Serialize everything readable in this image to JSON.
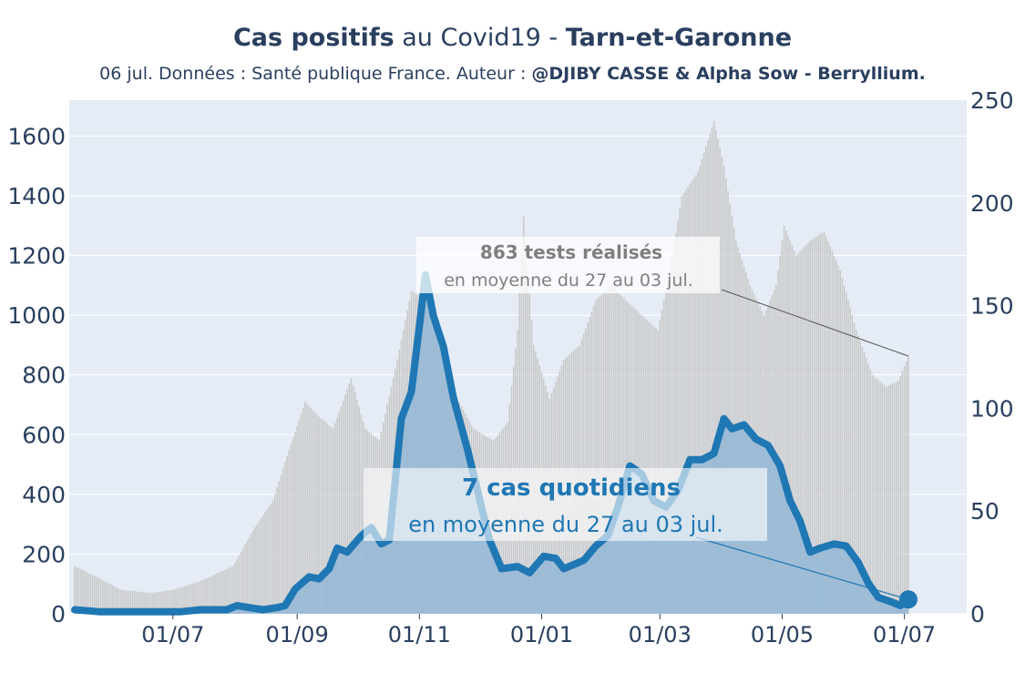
{
  "title": {
    "part1_bold": "Cas positifs",
    "part2": " au Covid19 - ",
    "part3_bold": "Tarn-et-Garonne"
  },
  "subtitle": {
    "text": "06 jul. Données : Santé publique France. Auteur : ",
    "author_bold": "@DJIBY CASSE & Alpha Sow - Berryllium."
  },
  "colors": {
    "plot_bg": "#e5ecf6",
    "cases_line": "#1f77b4",
    "cases_fill": "#8cb4d6",
    "tests_bars": "#c8c8c8",
    "text": "#2a3f5f",
    "tests_annotation": "#7f7f7f"
  },
  "annotations": {
    "tests_bold": "863 tests réalisés",
    "tests_detail": "en moyenne du 27 au 03 jul.",
    "cases_bold": "7 cas quotidiens",
    "cases_detail": "en moyenne du 27 au 03 jul."
  },
  "chart_data": {
    "type": "line",
    "x_start": "2020-05-13",
    "x_end": "2021-07-03",
    "x_ticks": [
      "01/07",
      "01/09",
      "01/11",
      "01/01",
      "01/03",
      "01/05",
      "01/07"
    ],
    "x_tick_dates": [
      "2020-07-01",
      "2020-09-01",
      "2020-11-01",
      "2021-01-01",
      "2021-03-01",
      "2021-05-01",
      "2021-07-01"
    ],
    "y_left": {
      "range": [
        0,
        1720
      ],
      "ticks": [
        0,
        200,
        400,
        600,
        800,
        1000,
        1200,
        1400,
        1600
      ]
    },
    "y_right": {
      "range": [
        0,
        250
      ],
      "ticks": [
        0,
        50,
        100,
        150,
        200,
        250
      ]
    },
    "series": [
      {
        "axis": "left",
        "kind": "bars",
        "points": [
          [
            "2020-05-13",
            160
          ],
          [
            "2020-05-25",
            120
          ],
          [
            "2020-06-05",
            80
          ],
          [
            "2020-06-20",
            70
          ],
          [
            "2020-07-01",
            80
          ],
          [
            "2020-07-15",
            110
          ],
          [
            "2020-07-31",
            160
          ],
          [
            "2020-08-10",
            280
          ],
          [
            "2020-08-20",
            380
          ],
          [
            "2020-08-28",
            550
          ],
          [
            "2020-09-05",
            710
          ],
          [
            "2020-09-12",
            660
          ],
          [
            "2020-09-19",
            620
          ],
          [
            "2020-09-28",
            790
          ],
          [
            "2020-10-05",
            620
          ],
          [
            "2020-10-12",
            580
          ],
          [
            "2020-10-20",
            820
          ],
          [
            "2020-10-28",
            1080
          ],
          [
            "2020-11-05",
            1050
          ],
          [
            "2020-11-12",
            900
          ],
          [
            "2020-11-20",
            720
          ],
          [
            "2020-11-28",
            620
          ],
          [
            "2020-12-08",
            580
          ],
          [
            "2020-12-15",
            640
          ],
          [
            "2020-12-20",
            950
          ],
          [
            "2020-12-23",
            1330
          ],
          [
            "2020-12-28",
            900
          ],
          [
            "2021-01-05",
            720
          ],
          [
            "2021-01-12",
            850
          ],
          [
            "2021-01-20",
            900
          ],
          [
            "2021-01-28",
            1050
          ],
          [
            "2021-02-05",
            1100
          ],
          [
            "2021-02-12",
            1050
          ],
          [
            "2021-02-20",
            1000
          ],
          [
            "2021-02-28",
            950
          ],
          [
            "2021-03-06",
            1150
          ],
          [
            "2021-03-12",
            1400
          ],
          [
            "2021-03-20",
            1480
          ],
          [
            "2021-03-28",
            1650
          ],
          [
            "2021-04-02",
            1500
          ],
          [
            "2021-04-08",
            1250
          ],
          [
            "2021-04-15",
            1100
          ],
          [
            "2021-04-22",
            1000
          ],
          [
            "2021-04-28",
            1100
          ],
          [
            "2021-05-02",
            1300
          ],
          [
            "2021-05-08",
            1200
          ],
          [
            "2021-05-15",
            1250
          ],
          [
            "2021-05-22",
            1280
          ],
          [
            "2021-05-30",
            1150
          ],
          [
            "2021-06-07",
            950
          ],
          [
            "2021-06-15",
            800
          ],
          [
            "2021-06-22",
            760
          ],
          [
            "2021-06-28",
            780
          ],
          [
            "2021-07-03",
            863
          ]
        ]
      },
      {
        "axis": "right",
        "kind": "line",
        "points": [
          [
            "2020-05-13",
            2
          ],
          [
            "2020-05-25",
            1
          ],
          [
            "2020-06-10",
            1
          ],
          [
            "2020-06-25",
            1
          ],
          [
            "2020-07-05",
            1
          ],
          [
            "2020-07-15",
            2
          ],
          [
            "2020-07-28",
            2
          ],
          [
            "2020-08-02",
            4
          ],
          [
            "2020-08-08",
            3
          ],
          [
            "2020-08-15",
            2
          ],
          [
            "2020-08-22",
            3
          ],
          [
            "2020-08-26",
            4
          ],
          [
            "2020-08-31",
            12
          ],
          [
            "2020-09-07",
            18
          ],
          [
            "2020-09-12",
            17
          ],
          [
            "2020-09-17",
            22
          ],
          [
            "2020-09-21",
            32
          ],
          [
            "2020-09-26",
            30
          ],
          [
            "2020-10-03",
            38
          ],
          [
            "2020-10-08",
            42
          ],
          [
            "2020-10-13",
            34
          ],
          [
            "2020-10-17",
            36
          ],
          [
            "2020-10-23",
            95
          ],
          [
            "2020-10-28",
            108
          ],
          [
            "2020-11-01",
            140
          ],
          [
            "2020-11-04",
            165
          ],
          [
            "2020-11-08",
            145
          ],
          [
            "2020-11-13",
            130
          ],
          [
            "2020-11-18",
            105
          ],
          [
            "2020-11-25",
            80
          ],
          [
            "2020-11-30",
            60
          ],
          [
            "2020-12-06",
            36
          ],
          [
            "2020-12-12",
            22
          ],
          [
            "2020-12-20",
            23
          ],
          [
            "2020-12-26",
            20
          ],
          [
            "2021-01-02",
            28
          ],
          [
            "2021-01-08",
            27
          ],
          [
            "2021-01-12",
            22
          ],
          [
            "2021-01-17",
            24
          ],
          [
            "2021-01-22",
            26
          ],
          [
            "2021-01-28",
            33
          ],
          [
            "2021-02-03",
            38
          ],
          [
            "2021-02-08",
            52
          ],
          [
            "2021-02-14",
            72
          ],
          [
            "2021-02-20",
            68
          ],
          [
            "2021-02-26",
            55
          ],
          [
            "2021-03-04",
            52
          ],
          [
            "2021-03-10",
            60
          ],
          [
            "2021-03-16",
            75
          ],
          [
            "2021-03-22",
            75
          ],
          [
            "2021-03-28",
            78
          ],
          [
            "2021-04-02",
            95
          ],
          [
            "2021-04-06",
            90
          ],
          [
            "2021-04-12",
            92
          ],
          [
            "2021-04-18",
            85
          ],
          [
            "2021-04-24",
            82
          ],
          [
            "2021-04-30",
            72
          ],
          [
            "2021-05-05",
            55
          ],
          [
            "2021-05-10",
            45
          ],
          [
            "2021-05-15",
            30
          ],
          [
            "2021-05-20",
            32
          ],
          [
            "2021-05-27",
            34
          ],
          [
            "2021-06-02",
            33
          ],
          [
            "2021-06-08",
            25
          ],
          [
            "2021-06-13",
            15
          ],
          [
            "2021-06-18",
            8
          ],
          [
            "2021-06-24",
            6
          ],
          [
            "2021-06-29",
            4
          ],
          [
            "2021-07-03",
            7
          ]
        ]
      }
    ]
  }
}
